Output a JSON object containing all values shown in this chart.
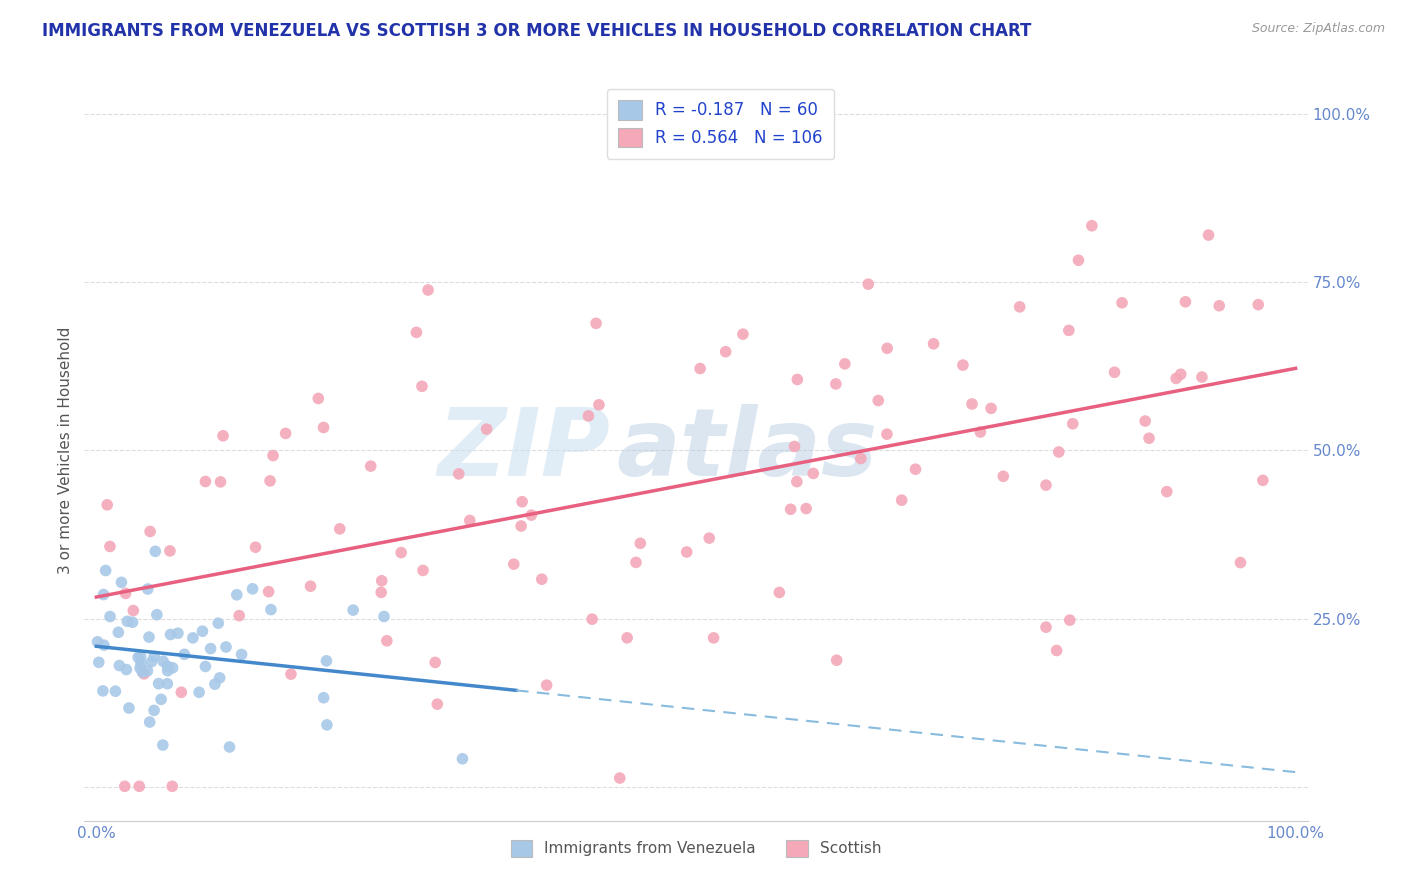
{
  "title": "IMMIGRANTS FROM VENEZUELA VS SCOTTISH 3 OR MORE VEHICLES IN HOUSEHOLD CORRELATION CHART",
  "source": "Source: ZipAtlas.com",
  "ylabel": "3 or more Vehicles in Household",
  "legend_label1": "Immigrants from Venezuela",
  "legend_label2": "Scottish",
  "R1": -0.187,
  "N1": 60,
  "R2": 0.564,
  "N2": 106,
  "color_blue": "#a8c8e8",
  "color_pink": "#f4a8b8",
  "line_blue_solid": "#4488cc",
  "line_blue_dash": "#88bbdd",
  "line_pink": "#e86080",
  "watermark_zip": "ZIP",
  "watermark_atlas": "atlas",
  "background_color": "#ffffff",
  "title_color": "#2233aa",
  "source_color": "#999999",
  "axis_label_color": "#6688cc",
  "ylabel_color": "#555555"
}
